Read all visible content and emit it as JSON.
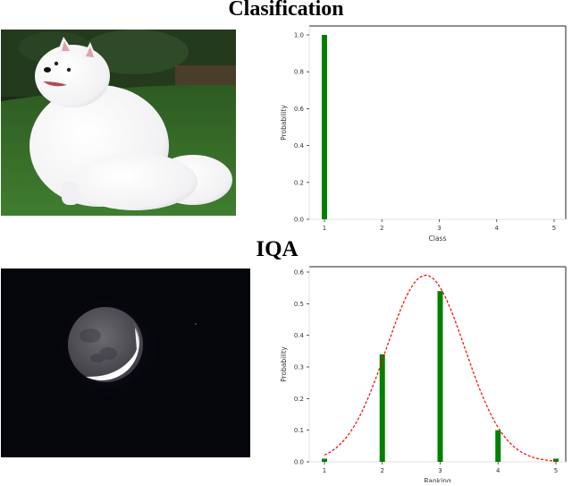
{
  "titles": {
    "classification": "Clasification",
    "iqa": "IQA"
  },
  "images": {
    "classification": "white-spitz-dog-on-grass",
    "iqa": "crescent-moon-night-sky"
  },
  "colors": {
    "bar": "#008000",
    "curve": "#ff0000",
    "axis": "#000000",
    "moon_bg": "#05050c",
    "grass": "#3f7a2c"
  },
  "chart_data": [
    {
      "type": "bar",
      "title": "Clasification",
      "xlabel": "Class",
      "ylabel": "Probability",
      "categories": [
        "1",
        "2",
        "3",
        "4",
        "5"
      ],
      "values": [
        1.0,
        0.0,
        0.0,
        0.0,
        0.0
      ],
      "ylim": [
        0,
        1.05
      ],
      "yticks": [
        "0.0",
        "0.2",
        "0.4",
        "0.6",
        "0.8",
        "1.0"
      ],
      "grid": false,
      "legend": null
    },
    {
      "type": "bar",
      "title": "IQA",
      "xlabel": "Ranking",
      "ylabel": "Probability",
      "categories": [
        "1",
        "2",
        "3",
        "4",
        "5"
      ],
      "values": [
        0.01,
        0.34,
        0.54,
        0.1,
        0.01
      ],
      "ylim": [
        0,
        0.6
      ],
      "yticks": [
        "0.0",
        "0.1",
        "0.2",
        "0.3",
        "0.4",
        "0.5",
        "0.6"
      ],
      "grid": false,
      "legend": null,
      "overlay": {
        "type": "line",
        "style": "dashed",
        "color": "#ff0000",
        "description": "Gaussian fit",
        "mean": 2.75,
        "peak": 0.59,
        "sigma": 0.68,
        "x": [
          1.0,
          1.5,
          2.0,
          2.5,
          2.75,
          3.0,
          3.5,
          4.0,
          4.5,
          5.0
        ],
        "y": [
          0.02,
          0.11,
          0.32,
          0.55,
          0.59,
          0.55,
          0.32,
          0.11,
          0.02,
          0.003
        ]
      }
    }
  ]
}
